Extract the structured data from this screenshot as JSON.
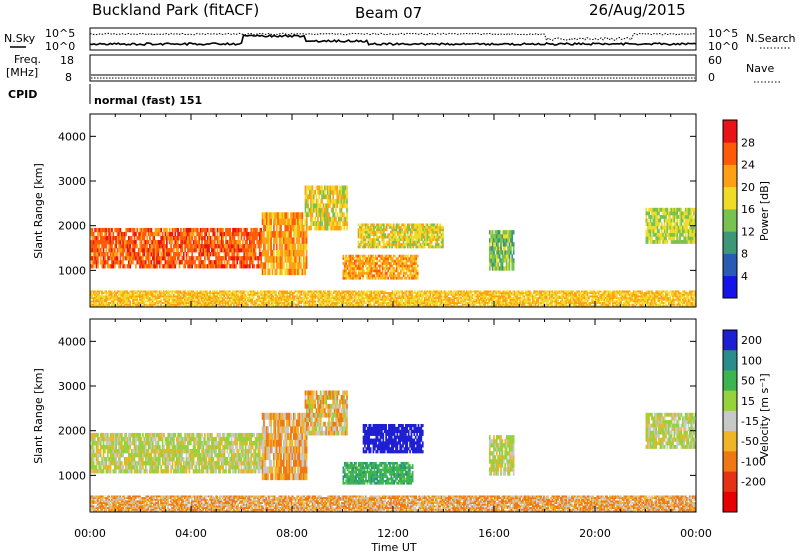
{
  "header": {
    "title": "Buckland Park (fitACF)",
    "beam": "Beam 07",
    "date": "26/Aug/2015"
  },
  "noise_panel": {
    "left_label": "N.Sky",
    "right_label": "N.Search",
    "tick_top": "10^5",
    "tick_bottom": "10^0"
  },
  "freq_panel": {
    "left_label_line1": "Freq.",
    "left_label_line2": "[MHz]",
    "left_tick_top": "18",
    "left_tick_bottom": "8",
    "right_label": "Nave",
    "right_tick_top": "60",
    "right_tick_bottom": "0"
  },
  "cpid": {
    "label": "CPID",
    "value": "normal (fast) 151"
  },
  "axes": {
    "ylabel": "Slant Range [km]",
    "xlabel": "Time UT",
    "yticks": [
      "1000",
      "2000",
      "3000",
      "4000"
    ],
    "xticks": [
      "00:00",
      "04:00",
      "08:00",
      "12:00",
      "16:00",
      "20:00",
      "00:00"
    ]
  },
  "power_scale": {
    "label": "Power [dB]",
    "ticks": [
      "4",
      "8",
      "12",
      "16",
      "20",
      "24",
      "28"
    ],
    "colors": [
      "#1414e6",
      "#2a5ab4",
      "#3c9678",
      "#78c350",
      "#f0dc28",
      "#ffa014",
      "#ff5a0a",
      "#e61414"
    ]
  },
  "velocity_scale": {
    "label": "Velocity [m s⁻¹]",
    "ticks": [
      "200",
      "100",
      "50",
      "15",
      "-15",
      "-50",
      "-100",
      "-200"
    ],
    "colors": [
      "#1e1ed2",
      "#2a8c8c",
      "#3cb450",
      "#96d23c",
      "#c8c8c8",
      "#f0b428",
      "#f07814",
      "#e63214",
      "#e60000"
    ]
  },
  "chart_data": [
    {
      "type": "heatmap",
      "name_panel": "power",
      "xlim": [
        "00:00",
        "24:00"
      ],
      "ylim": [
        180,
        4500
      ],
      "xlabel": "Time UT",
      "ylabel": "Slant Range [km]",
      "colorbar_label": "Power [dB]",
      "colorbar_range": [
        0,
        32
      ],
      "regions": [
        {
          "t0": 0.0,
          "t1": 6.8,
          "r0": 1050,
          "r1": 1950,
          "value": 26
        },
        {
          "t0": 6.8,
          "t1": 8.6,
          "r0": 900,
          "r1": 2300,
          "value": 22
        },
        {
          "t0": 8.5,
          "t1": 10.2,
          "r0": 1900,
          "r1": 2900,
          "value": 18
        },
        {
          "t0": 10.0,
          "t1": 13.0,
          "r0": 800,
          "r1": 1350,
          "value": 22
        },
        {
          "t0": 10.6,
          "t1": 14.0,
          "r0": 1500,
          "r1": 2050,
          "value": 18
        },
        {
          "t0": 15.8,
          "t1": 16.8,
          "r0": 1000,
          "r1": 1900,
          "value": 14
        },
        {
          "t0": 22.0,
          "t1": 24.0,
          "r0": 1600,
          "r1": 2400,
          "value": 16
        },
        {
          "t0": 0.0,
          "t1": 24.0,
          "r0": 180,
          "r1": 550,
          "value": 20
        }
      ]
    },
    {
      "type": "heatmap",
      "name_panel": "velocity",
      "xlim": [
        "00:00",
        "24:00"
      ],
      "ylim": [
        180,
        4500
      ],
      "xlabel": "Time UT",
      "ylabel": "Slant Range [km]",
      "colorbar_label": "Velocity [m s⁻¹]",
      "colorbar_range": [
        -200,
        200
      ],
      "regions": [
        {
          "t0": 0.0,
          "t1": 6.8,
          "r0": 1050,
          "r1": 1950,
          "value": 0
        },
        {
          "t0": 6.8,
          "t1": 8.6,
          "r0": 900,
          "r1": 2400,
          "value": -30
        },
        {
          "t0": 8.5,
          "t1": 10.2,
          "r0": 1900,
          "r1": 2900,
          "value": -20
        },
        {
          "t0": 10.0,
          "t1": 12.8,
          "r0": 800,
          "r1": 1300,
          "value": 60
        },
        {
          "t0": 10.8,
          "t1": 13.2,
          "r0": 1500,
          "r1": 2150,
          "value": 180
        },
        {
          "t0": 15.8,
          "t1": 16.8,
          "r0": 1000,
          "r1": 1900,
          "value": 0
        },
        {
          "t0": 22.0,
          "t1": 24.0,
          "r0": 1600,
          "r1": 2400,
          "value": 0
        },
        {
          "t0": 0.0,
          "t1": 24.0,
          "r0": 180,
          "r1": 550,
          "value": -30
        }
      ]
    }
  ]
}
